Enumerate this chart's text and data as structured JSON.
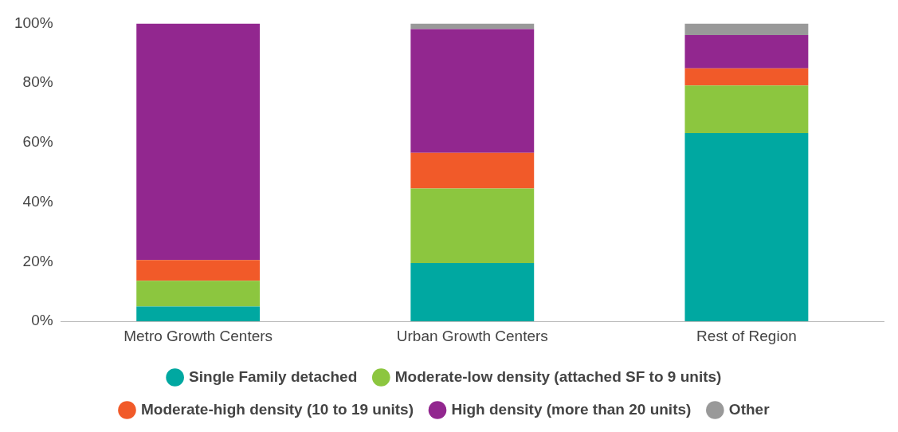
{
  "chart_data": {
    "type": "bar",
    "stacked": true,
    "categories": [
      "Metro Growth Centers",
      "Urban Growth Centers",
      "Rest of Region"
    ],
    "series": [
      {
        "name": "Single Family detached",
        "color": "#00a8a1",
        "values": [
          5,
          19.6,
          63.2
        ]
      },
      {
        "name": "Moderate-low density (attached SF to 9 units)",
        "color": "#8cc63f",
        "values": [
          8.6,
          25,
          16
        ]
      },
      {
        "name": "Moderate-high density (10 to 19 units)",
        "color": "#f15a29",
        "values": [
          7,
          12,
          5.7
        ]
      },
      {
        "name": "High density (more than 20 units)",
        "color": "#92278f",
        "values": [
          79.4,
          41.5,
          11.2
        ]
      },
      {
        "name": "Other",
        "color": "#999999",
        "values": [
          0,
          1.9,
          3.9
        ]
      }
    ],
    "ylim": [
      0,
      100
    ],
    "yticks": [
      {
        "value": 0,
        "label": "0%"
      },
      {
        "value": 20,
        "label": "20%"
      },
      {
        "value": 40,
        "label": "40%"
      },
      {
        "value": 60,
        "label": "60%"
      },
      {
        "value": 80,
        "label": "80%"
      },
      {
        "value": 100,
        "label": "100%"
      }
    ],
    "grid": false,
    "legend": "bottom"
  }
}
